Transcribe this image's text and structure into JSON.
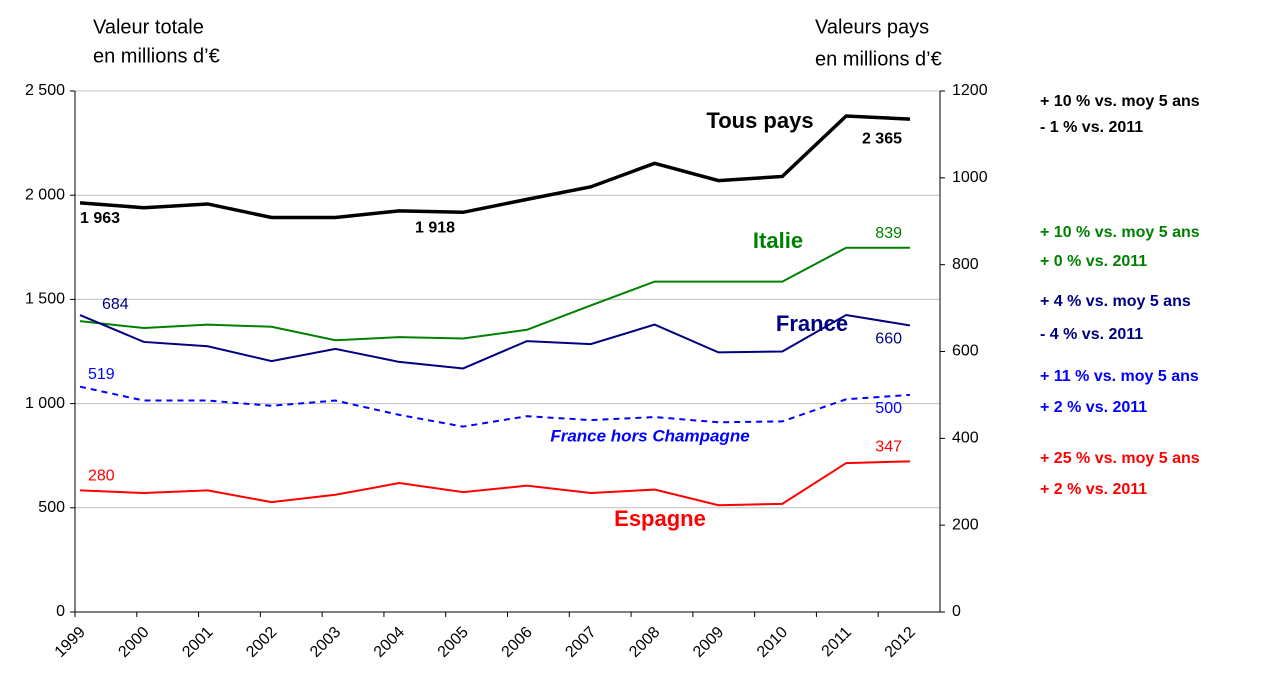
{
  "chart_data": {
    "type": "line",
    "y_axis_title": [
      "Valeur totale",
      "en millions d’€"
    ],
    "y2_axis_title": [
      "Valeurs pays",
      "en millions d’€"
    ],
    "categories": [
      "1999",
      "2000",
      "2001",
      "2002",
      "2003",
      "2004",
      "2005",
      "2006",
      "2007",
      "2008",
      "2009",
      "2010",
      "2011",
      "2012"
    ],
    "ylim": [
      0,
      2500
    ],
    "yticks": [
      0,
      {
        "value": 500,
        "label": "500"
      },
      {
        "value": 1000,
        "label": "1 000"
      },
      {
        "value": 1500,
        "label": "1 500"
      },
      {
        "value": 2000,
        "label": "2 000"
      },
      {
        "value": 2500,
        "label": "2 500"
      }
    ],
    "y2lim": [
      0,
      1200
    ],
    "y2ticks": [
      0,
      200,
      400,
      600,
      800,
      1000,
      1200
    ],
    "grid": true,
    "series": [
      {
        "name": "Tous pays",
        "color": "#000000",
        "axis": "y",
        "dash": false,
        "values": [
          1963,
          1940,
          1958,
          1893,
          1893,
          1925,
          1918,
          1980,
          2040,
          2153,
          2070,
          2090,
          2380,
          2365
        ],
        "value_labels": [
          "1 963",
          null,
          null,
          null,
          null,
          null,
          "1 918",
          null,
          null,
          null,
          null,
          null,
          null,
          "2 365"
        ]
      },
      {
        "name": "Italie",
        "color": "#008000",
        "axis": "y2",
        "dash": false,
        "values": [
          670,
          654,
          662,
          657,
          626,
          633,
          630,
          650,
          706,
          761,
          761,
          761,
          839,
          839
        ],
        "value_labels": [
          null,
          null,
          null,
          null,
          null,
          null,
          null,
          null,
          null,
          null,
          null,
          null,
          null,
          "839"
        ]
      },
      {
        "name": "France",
        "color": "#000080",
        "axis": "y2",
        "dash": false,
        "values": [
          684,
          622,
          612,
          578,
          606,
          576,
          561,
          624,
          617,
          662,
          598,
          600,
          684,
          660
        ],
        "value_labels": [
          "684",
          null,
          null,
          null,
          null,
          null,
          null,
          null,
          null,
          null,
          null,
          null,
          null,
          "660"
        ]
      },
      {
        "name": "France hors Champagne",
        "color": "#0000ff",
        "axis": "y2",
        "dash": true,
        "values": [
          519,
          487,
          487,
          475,
          487,
          454,
          427,
          451,
          442,
          449,
          437,
          439,
          490,
          500
        ],
        "value_labels": [
          "519",
          null,
          null,
          null,
          null,
          null,
          null,
          null,
          null,
          null,
          null,
          null,
          null,
          "500"
        ]
      },
      {
        "name": "Espagne",
        "color": "#ff0000",
        "axis": "y2",
        "dash": false,
        "values": [
          280,
          274,
          280,
          253,
          270,
          297,
          276,
          291,
          274,
          282,
          246,
          249,
          343,
          347
        ],
        "value_labels": [
          "280",
          null,
          null,
          null,
          null,
          null,
          null,
          null,
          null,
          null,
          null,
          null,
          null,
          "347"
        ]
      }
    ],
    "annotations": [
      {
        "color": "#000000",
        "lines": [
          "+ 10 % vs. moy 5 ans",
          "- 1 % vs. 2011"
        ]
      },
      {
        "color": "#008000",
        "lines": [
          "+ 10 % vs. moy 5 ans",
          "+ 0 % vs. 2011"
        ]
      },
      {
        "color": "#000080",
        "lines": [
          "+ 4 % vs. moy 5 ans",
          "- 4 % vs. 2011"
        ]
      },
      {
        "color": "#0000ff",
        "lines": [
          "+ 11 % vs. moy 5 ans",
          "+ 2 % vs. 2011"
        ]
      },
      {
        "color": "#ff0000",
        "lines": [
          "+ 25 % vs. moy 5 ans",
          "+ 2 % vs. 2011"
        ]
      }
    ]
  }
}
